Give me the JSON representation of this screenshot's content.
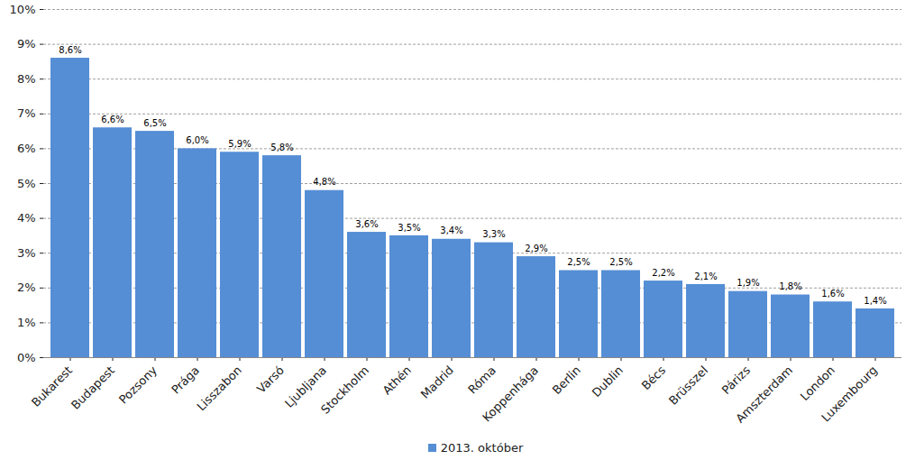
{
  "chart_data": {
    "type": "bar",
    "categories": [
      "Bukarest",
      "Budapest",
      "Pozsony",
      "Prága",
      "Lisszabon",
      "Varsó",
      "Ljubljana",
      "Stockholm",
      "Athén",
      "Madrid",
      "Róma",
      "Koppenhága",
      "Berlin",
      "Dublin",
      "Bécs",
      "Brüsszel",
      "Párizs",
      "Amszterdam",
      "London",
      "Luxembourg"
    ],
    "series": [
      {
        "name": "2013. október",
        "color": "#558ed5",
        "values": [
          8.6,
          6.6,
          6.5,
          6.0,
          5.9,
          5.8,
          4.8,
          3.6,
          3.5,
          3.4,
          3.3,
          2.9,
          2.5,
          2.5,
          2.2,
          2.1,
          1.9,
          1.8,
          1.6,
          1.4
        ],
        "value_labels": [
          "8,6%",
          "6,6%",
          "6,5%",
          "6,0%",
          "5,9%",
          "5,8%",
          "4,8%",
          "3,6%",
          "3,5%",
          "3,4%",
          "3,3%",
          "2,9%",
          "2,5%",
          "2,5%",
          "2,2%",
          "2,1%",
          "1,9%",
          "1,8%",
          "1,6%",
          "1,4%"
        ]
      }
    ],
    "ylim": [
      0,
      10
    ],
    "yticks": [
      {
        "value": 0,
        "label": "0%"
      },
      {
        "value": 1,
        "label": "1%"
      },
      {
        "value": 2,
        "label": "2%"
      },
      {
        "value": 3,
        "label": "3%"
      },
      {
        "value": 4,
        "label": "4%"
      },
      {
        "value": 5,
        "label": "5%"
      },
      {
        "value": 6,
        "label": "6%"
      },
      {
        "value": 7,
        "label": "7%"
      },
      {
        "value": 8,
        "label": "8%"
      },
      {
        "value": 9,
        "label": "9%"
      },
      {
        "value": 10,
        "label": "10%"
      }
    ],
    "grid": true,
    "data_labels": true,
    "legend": "bottom"
  }
}
